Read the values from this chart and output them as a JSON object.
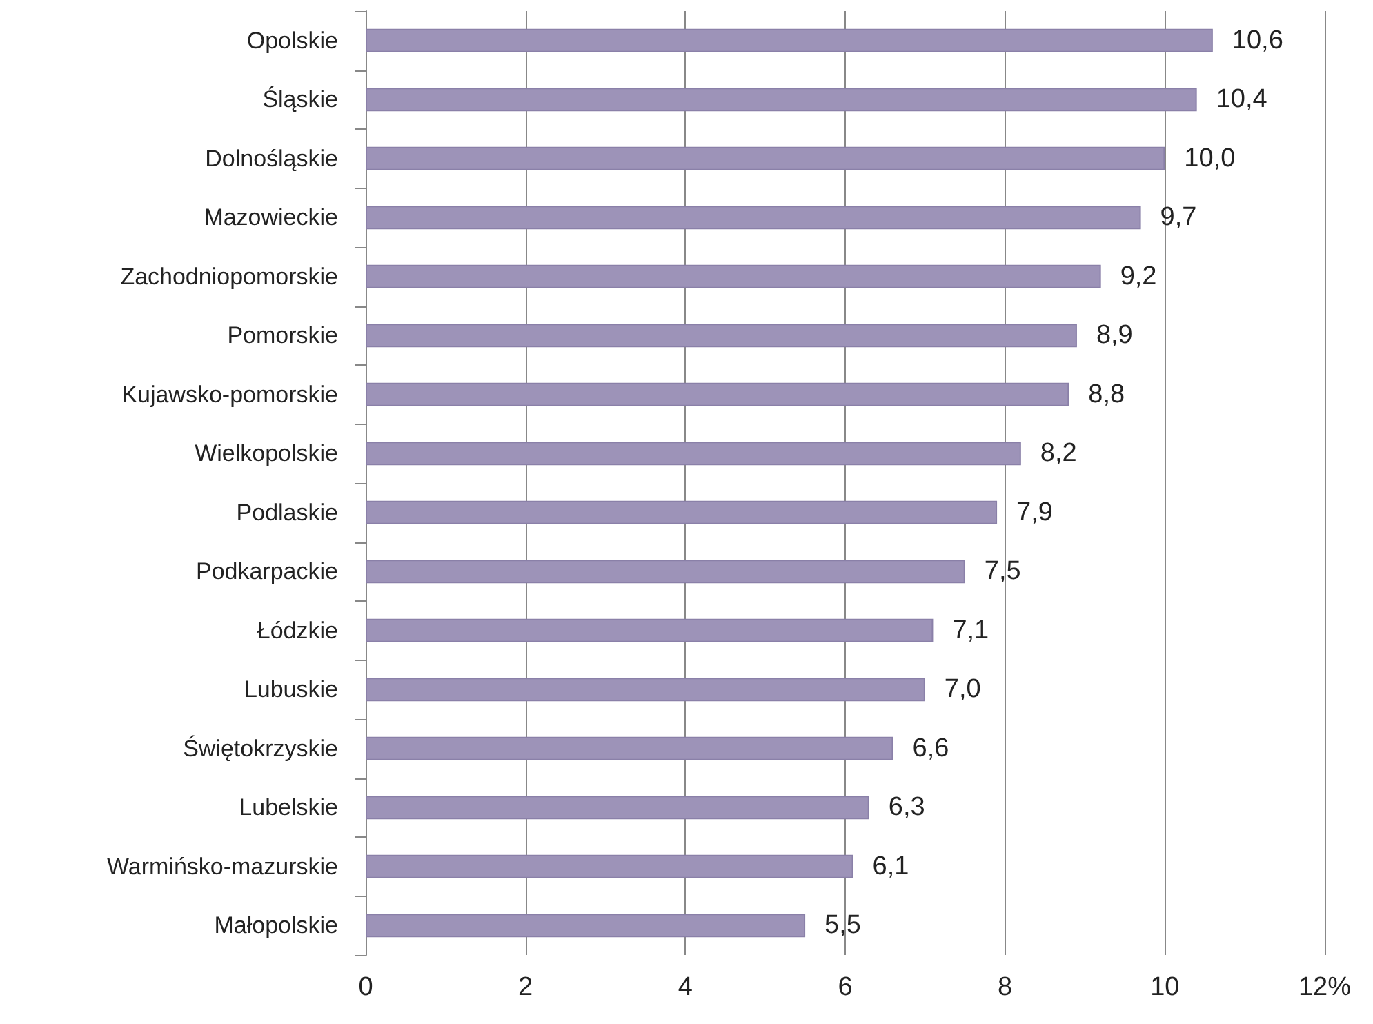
{
  "chart_data": {
    "type": "bar",
    "orientation": "horizontal",
    "categories": [
      "Opolskie",
      "Śląskie",
      "Dolnośląskie",
      "Mazowieckie",
      "Zachodniopomorskie",
      "Pomorskie",
      "Kujawsko-pomorskie",
      "Wielkopolskie",
      "Podlaskie",
      "Podkarpackie",
      "Łódzkie",
      "Lubuskie",
      "Świętokrzyskie",
      "Lubelskie",
      "Warmińsko-mazurskie",
      "Małopolskie"
    ],
    "values": [
      10.6,
      10.4,
      10.0,
      9.7,
      9.2,
      8.9,
      8.8,
      8.2,
      7.9,
      7.5,
      7.1,
      7.0,
      6.6,
      6.3,
      6.1,
      5.5
    ],
    "value_labels": [
      "10,6",
      "10,4",
      "10,0",
      "9,7",
      "9,2",
      "8,9",
      "8,8",
      "8,2",
      "7,9",
      "7,5",
      "7,1",
      "7,0",
      "6,6",
      "6,3",
      "6,1",
      "5,5"
    ],
    "color": "#9d93b8",
    "xlim": [
      0,
      12
    ],
    "xticks": [
      0,
      2,
      4,
      6,
      8,
      10,
      {
        "value": 12,
        "label": "12%"
      }
    ],
    "grid": "x"
  }
}
